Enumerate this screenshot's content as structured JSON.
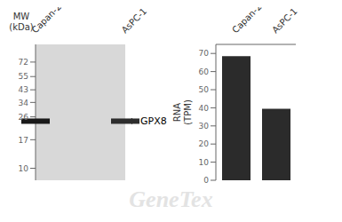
{
  "chart_data": [
    {
      "type": "blot",
      "categories": [
        "Capan-2",
        "AsPC-1"
      ],
      "values": [
        24,
        24
      ],
      "colors": [
        "#1a1a1a",
        "#2d2d2d"
      ],
      "color": "#d8d8d8",
      "log": "y",
      "ylim": [
        8,
        100
      ],
      "yticks": [
        72,
        55,
        43,
        34,
        26,
        17,
        10
      ],
      "ylabel": "MW\n(kDa)",
      "annotations": [
        {
          "text": "GPX8",
          "y": 24
        },
        {
          "text": "GeneTex"
        }
      ]
    },
    {
      "type": "bar",
      "categories": [
        "Capan-2",
        "AsPC-1"
      ],
      "values": [
        68.5,
        39.5
      ],
      "color": "#2b2b2b",
      "ylim": [
        0,
        75
      ],
      "yticks": [
        0,
        10,
        20,
        30,
        40,
        50,
        60,
        70
      ],
      "ylabel": "RNA\n(TPM)"
    }
  ]
}
